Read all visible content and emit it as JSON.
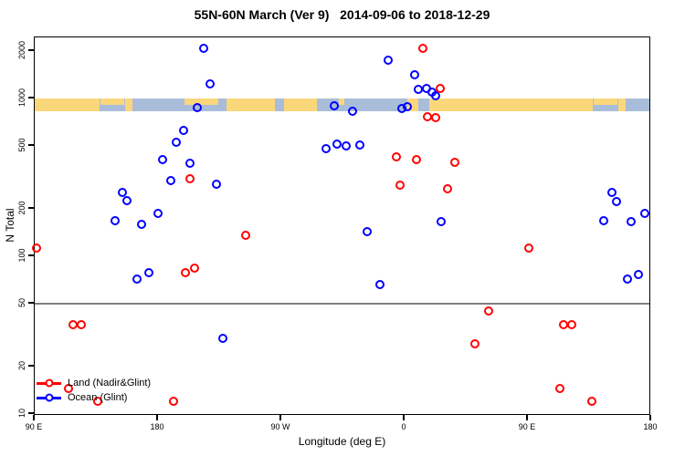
{
  "title": "55N-60N March (Ver 9)   2014-09-06 to 2018-12-29",
  "legend": {
    "items": [
      {
        "label": "Land (Nadir&Glint)",
        "color": "#FF0000"
      },
      {
        "label": "Ocean (Glint)",
        "color": "#0000FF"
      }
    ]
  },
  "chart_data": {
    "type": "scatter",
    "title": "55N-60N March (Ver 9)   2014-09-06 to 2018-12-29",
    "xlabel": "Longitude (deg E)",
    "ylabel": "N Total",
    "x_range": [
      90,
      540
    ],
    "y_scale": "log",
    "y_range": [
      10,
      2400
    ],
    "grid": "off",
    "legend_position": "bottom-left",
    "x_ticks": [
      {
        "value": 90,
        "label": "90 E"
      },
      {
        "value": 180,
        "label": "180"
      },
      {
        "value": 270,
        "label": "90 W"
      },
      {
        "value": 360,
        "label": "0"
      },
      {
        "value": 450,
        "label": "90 E"
      },
      {
        "value": 540,
        "label": "180"
      }
    ],
    "y_ticks": [
      {
        "value": 10,
        "label": "10"
      },
      {
        "value": 20,
        "label": "20"
      },
      {
        "value": 50,
        "label": "50"
      },
      {
        "value": 100,
        "label": "100"
      },
      {
        "value": 200,
        "label": "200"
      },
      {
        "value": 500,
        "label": "500"
      },
      {
        "value": 1000,
        "label": "1000"
      },
      {
        "value": 2000,
        "label": "2000"
      }
    ],
    "reference_line": {
      "y": 50,
      "color": "#808080"
    },
    "map_band": {
      "y_top": 1000,
      "y_bottom": 830,
      "ocean_color": "#A9BCD9",
      "land_color": "#FBD77C",
      "land_segments_full": [
        [
          90,
          137.5
        ],
        [
          156,
          161
        ],
        [
          230,
          265
        ],
        [
          272,
          296
        ],
        [
          362,
          370
        ],
        [
          378,
          497
        ],
        [
          516,
          521
        ]
      ],
      "land_segments_top_half": [
        [
          138,
          155
        ],
        [
          199,
          224
        ],
        [
          312,
          316
        ],
        [
          498,
          515
        ]
      ]
    },
    "series": [
      {
        "name": "Land (Nadir&Glint)",
        "color": "#FF0000",
        "points": [
          [
            373.3,
            2070
          ],
          [
            386,
            1160
          ],
          [
            376.7,
            765
          ],
          [
            382.7,
            755
          ],
          [
            354,
            428
          ],
          [
            368.7,
            410
          ],
          [
            396.7,
            394
          ],
          [
            203.3,
            310
          ],
          [
            356.7,
            282
          ],
          [
            391.3,
            267
          ],
          [
            244,
            135
          ],
          [
            91.3,
            113
          ],
          [
            450.7,
            112
          ],
          [
            200,
            79
          ],
          [
            206.7,
            84
          ],
          [
            118,
            37
          ],
          [
            124,
            37
          ],
          [
            476,
            37
          ],
          [
            482,
            37
          ],
          [
            421.3,
            45
          ],
          [
            411.3,
            28
          ],
          [
            114.7,
            14.5
          ],
          [
            136,
            12
          ],
          [
            191.3,
            12
          ],
          [
            473.3,
            14.5
          ],
          [
            496.7,
            12
          ]
        ]
      },
      {
        "name": "Ocean (Glint)",
        "color": "#0000FF",
        "points": [
          [
            213.3,
            2070
          ],
          [
            218,
            1240
          ],
          [
            348,
            1760
          ],
          [
            367.3,
            1420
          ],
          [
            208.7,
            875
          ],
          [
            308.7,
            900
          ],
          [
            322,
            830
          ],
          [
            358,
            860
          ],
          [
            362,
            890
          ],
          [
            370,
            1145
          ],
          [
            376,
            1160
          ],
          [
            380,
            1100
          ],
          [
            382.7,
            1040
          ],
          [
            198.7,
            625
          ],
          [
            193.3,
            525
          ],
          [
            302.7,
            483
          ],
          [
            310.7,
            517
          ],
          [
            317.3,
            503
          ],
          [
            327.3,
            510
          ],
          [
            183.3,
            410
          ],
          [
            203.3,
            389
          ],
          [
            189.3,
            301
          ],
          [
            222.7,
            286
          ],
          [
            154,
            254
          ],
          [
            157.3,
            224
          ],
          [
            180,
            188
          ],
          [
            148.7,
            169
          ],
          [
            168,
            160
          ],
          [
            332.7,
            144
          ],
          [
            386.7,
            165
          ],
          [
            164.7,
            72
          ],
          [
            173.3,
            79
          ],
          [
            342,
            66
          ],
          [
            227.3,
            30
          ],
          [
            511.3,
            254
          ],
          [
            514.7,
            221
          ],
          [
            505.3,
            169
          ],
          [
            525.3,
            165
          ],
          [
            535.3,
            186
          ],
          [
            522.7,
            72
          ],
          [
            530.7,
            77
          ]
        ]
      }
    ]
  }
}
